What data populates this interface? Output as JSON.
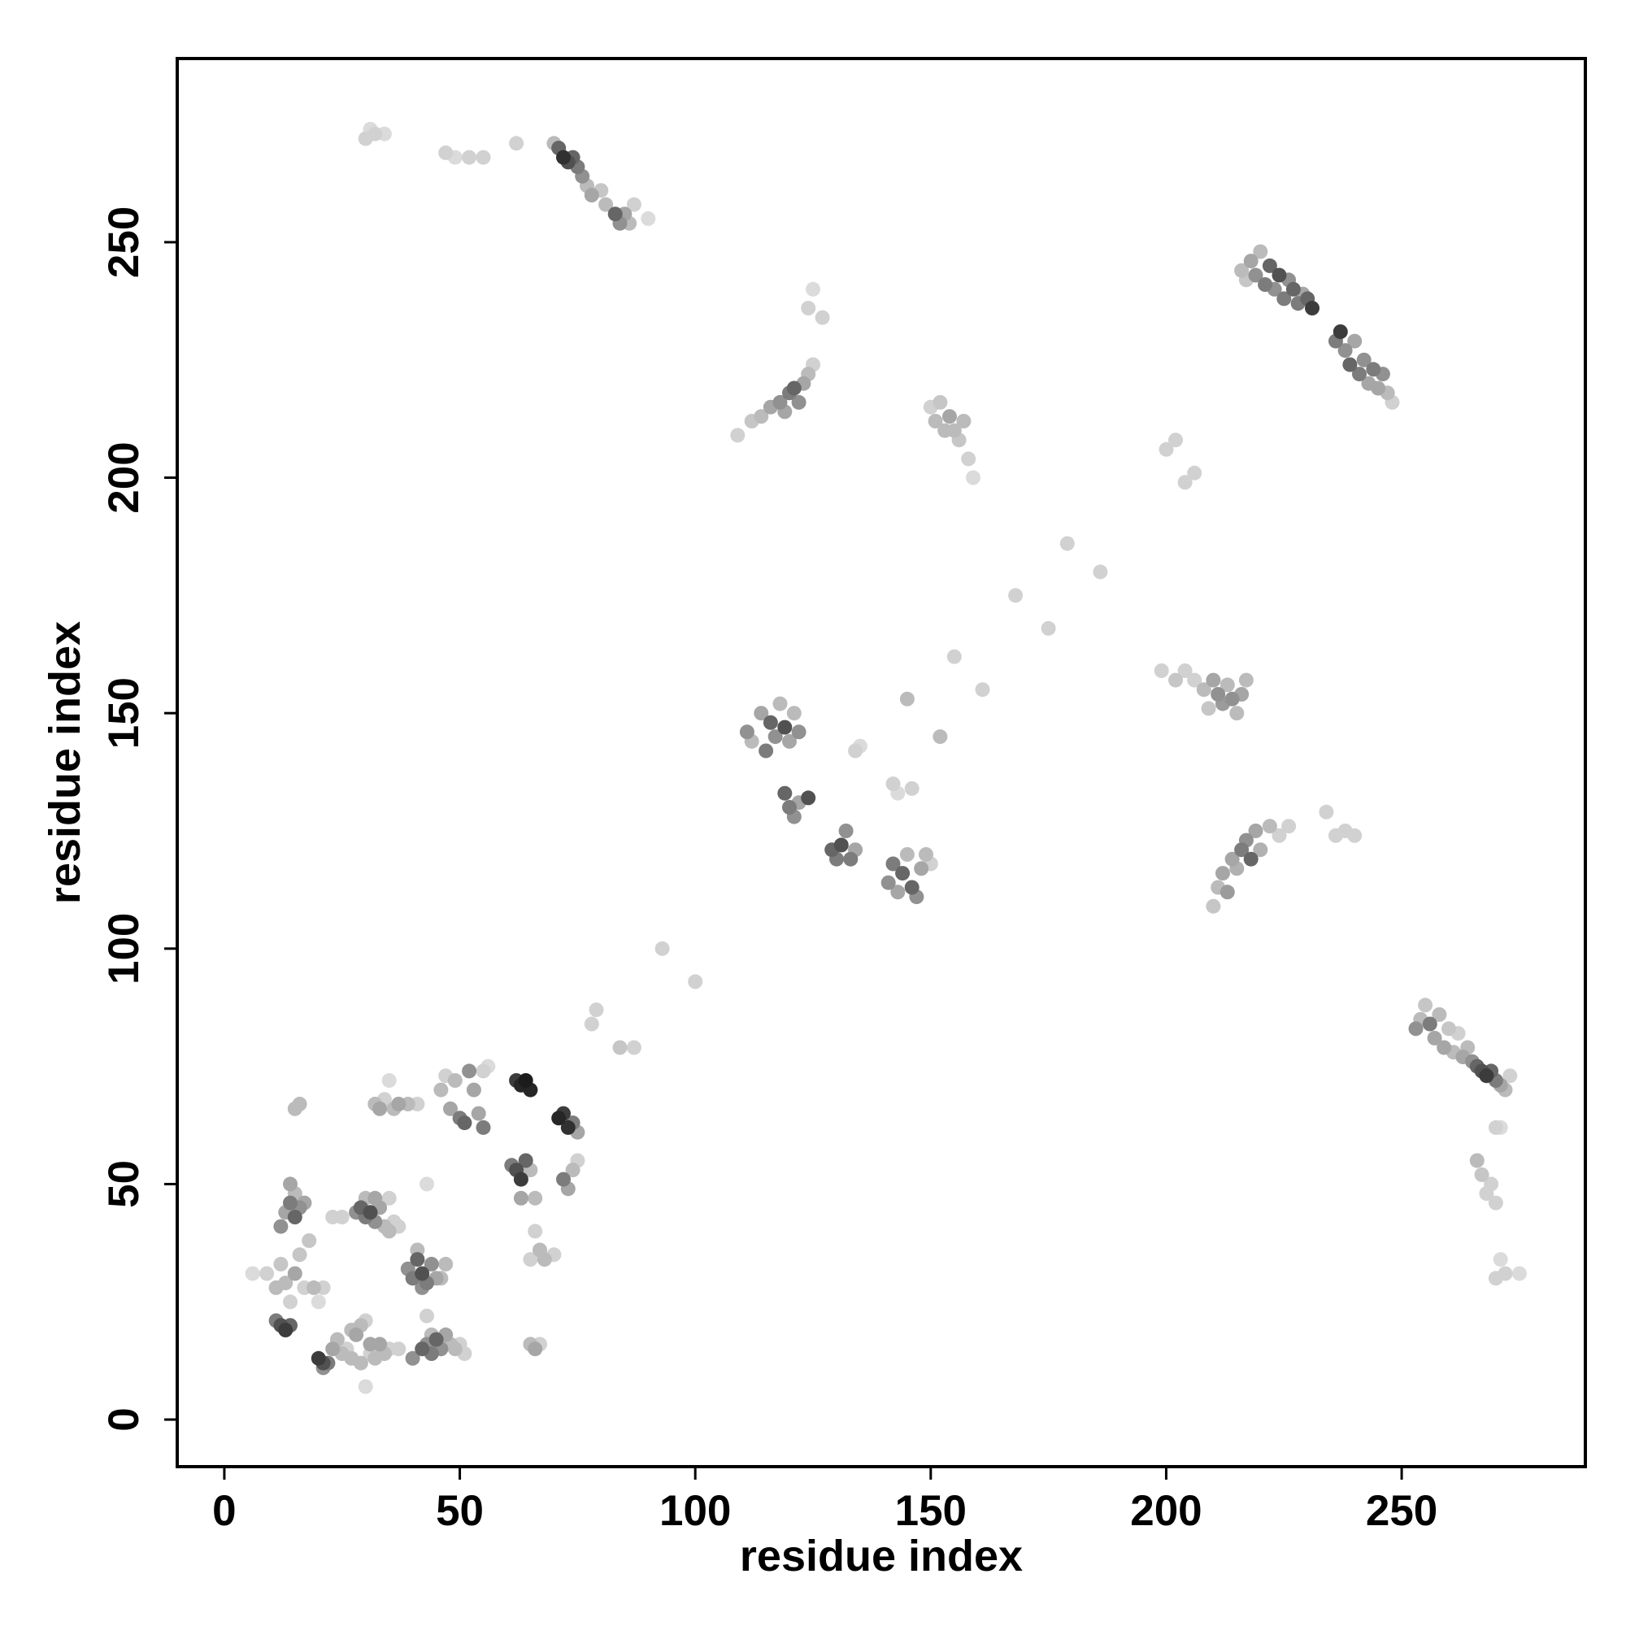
{
  "chart_data": {
    "type": "scatter",
    "title": "",
    "xlabel": "residue index",
    "ylabel": "residue index",
    "xlim": [
      -10,
      289
    ],
    "ylim": [
      -10,
      289
    ],
    "xticks": [
      0,
      50,
      100,
      150,
      200,
      250
    ],
    "yticks": [
      0,
      50,
      100,
      150,
      200,
      250
    ],
    "xtick_labels": [
      "0",
      "50",
      "100",
      "150",
      "200",
      "250"
    ],
    "ytick_labels": [
      "0",
      "50",
      "100",
      "150",
      "200",
      "250"
    ],
    "grid": false,
    "legend": "none",
    "marker_color_scale": "grayscale: 0 = #e6e6e6 (light), 1 = #111111 (dark)",
    "points_format": "[x, y, shade]",
    "points": [
      [
        6,
        31,
        0.05
      ],
      [
        9,
        31,
        0.1
      ],
      [
        11,
        28,
        0.2
      ],
      [
        12,
        33,
        0.15
      ],
      [
        12,
        41,
        0.4
      ],
      [
        13,
        44,
        0.3
      ],
      [
        14,
        46,
        0.5
      ],
      [
        14,
        50,
        0.3
      ],
      [
        15,
        43,
        0.6
      ],
      [
        16,
        45,
        0.4
      ],
      [
        15,
        48,
        0.2
      ],
      [
        17,
        46,
        0.3
      ],
      [
        13,
        29,
        0.2
      ],
      [
        14,
        25,
        0.1
      ],
      [
        15,
        31,
        0.3
      ],
      [
        16,
        35,
        0.15
      ],
      [
        17,
        28,
        0.1
      ],
      [
        19,
        28,
        0.2
      ],
      [
        20,
        25,
        0.05
      ],
      [
        21,
        28,
        0.1
      ],
      [
        18,
        38,
        0.15
      ],
      [
        15,
        66,
        0.2
      ],
      [
        16,
        67,
        0.2
      ],
      [
        11,
        21,
        0.5
      ],
      [
        12,
        20,
        0.7
      ],
      [
        13,
        19,
        0.8
      ],
      [
        14,
        20,
        0.6
      ],
      [
        20,
        13,
        0.8
      ],
      [
        21,
        12,
        0.7
      ],
      [
        22,
        12,
        0.5
      ],
      [
        21,
        11,
        0.4
      ],
      [
        23,
        15,
        0.3
      ],
      [
        24,
        17,
        0.2
      ],
      [
        25,
        14,
        0.2
      ],
      [
        26,
        15,
        0.1
      ],
      [
        27,
        19,
        0.2
      ],
      [
        28,
        18,
        0.3
      ],
      [
        29,
        20,
        0.2
      ],
      [
        30,
        21,
        0.1
      ],
      [
        27,
        13,
        0.2
      ],
      [
        29,
        12,
        0.2
      ],
      [
        31,
        14,
        0.1
      ],
      [
        32,
        13,
        0.2
      ],
      [
        31,
        16,
        0.3
      ],
      [
        30,
        7,
        0.05
      ],
      [
        33,
        16,
        0.3
      ],
      [
        34,
        14,
        0.2
      ],
      [
        35,
        15,
        0.1
      ],
      [
        37,
        15,
        0.1
      ],
      [
        28,
        44,
        0.4
      ],
      [
        29,
        45,
        0.6
      ],
      [
        30,
        43,
        0.5
      ],
      [
        31,
        44,
        0.7
      ],
      [
        32,
        42,
        0.4
      ],
      [
        33,
        45,
        0.3
      ],
      [
        34,
        41,
        0.2
      ],
      [
        35,
        40,
        0.2
      ],
      [
        36,
        42,
        0.1
      ],
      [
        37,
        41,
        0.1
      ],
      [
        30,
        47,
        0.2
      ],
      [
        32,
        47,
        0.3
      ],
      [
        35,
        47,
        0.1
      ],
      [
        25,
        43,
        0.1
      ],
      [
        23,
        43,
        0.1
      ],
      [
        32,
        67,
        0.2
      ],
      [
        33,
        66,
        0.3
      ],
      [
        34,
        68,
        0.1
      ],
      [
        35,
        72,
        0.05
      ],
      [
        36,
        66,
        0.2
      ],
      [
        37,
        67,
        0.3
      ],
      [
        39,
        67,
        0.2
      ],
      [
        41,
        67,
        0.1
      ],
      [
        39,
        32,
        0.4
      ],
      [
        40,
        30,
        0.5
      ],
      [
        41,
        34,
        0.6
      ],
      [
        42,
        31,
        0.7
      ],
      [
        43,
        29,
        0.5
      ],
      [
        44,
        33,
        0.4
      ],
      [
        45,
        30,
        0.3
      ],
      [
        41,
        36,
        0.2
      ],
      [
        42,
        28,
        0.4
      ],
      [
        43,
        22,
        0.1
      ],
      [
        47,
        33,
        0.2
      ],
      [
        46,
        30,
        0.2
      ],
      [
        44,
        18,
        0.2
      ],
      [
        42,
        15,
        0.6
      ],
      [
        43,
        16,
        0.4
      ],
      [
        44,
        14,
        0.5
      ],
      [
        45,
        17,
        0.6
      ],
      [
        46,
        15,
        0.4
      ],
      [
        47,
        18,
        0.3
      ],
      [
        48,
        16,
        0.2
      ],
      [
        49,
        15,
        0.2
      ],
      [
        50,
        16,
        0.1
      ],
      [
        51,
        14,
        0.1
      ],
      [
        40,
        13,
        0.4
      ],
      [
        43,
        50,
        0.05
      ],
      [
        46,
        70,
        0.2
      ],
      [
        47,
        73,
        0.1
      ],
      [
        48,
        66,
        0.3
      ],
      [
        49,
        72,
        0.2
      ],
      [
        50,
        64,
        0.5
      ],
      [
        51,
        63,
        0.6
      ],
      [
        52,
        74,
        0.4
      ],
      [
        53,
        70,
        0.3
      ],
      [
        54,
        65,
        0.3
      ],
      [
        55,
        62,
        0.5
      ],
      [
        55,
        74,
        0.1
      ],
      [
        56,
        75,
        0.05
      ],
      [
        61,
        54,
        0.5
      ],
      [
        62,
        53,
        0.7
      ],
      [
        63,
        51,
        0.8
      ],
      [
        64,
        55,
        0.6
      ],
      [
        63,
        47,
        0.3
      ],
      [
        65,
        53,
        0.2
      ],
      [
        62,
        72,
        0.8
      ],
      [
        63,
        71,
        0.9
      ],
      [
        64,
        72,
        0.95
      ],
      [
        65,
        70,
        0.9
      ],
      [
        66,
        47,
        0.2
      ],
      [
        66,
        40,
        0.1
      ],
      [
        67,
        36,
        0.2
      ],
      [
        68,
        34,
        0.2
      ],
      [
        65,
        34,
        0.1
      ],
      [
        70,
        35,
        0.1
      ],
      [
        65,
        16,
        0.2
      ],
      [
        66,
        15,
        0.3
      ],
      [
        67,
        16,
        0.1
      ],
      [
        71,
        64,
        0.9
      ],
      [
        72,
        65,
        0.8
      ],
      [
        73,
        62,
        0.85
      ],
      [
        74,
        63,
        0.5
      ],
      [
        75,
        61,
        0.3
      ],
      [
        72,
        51,
        0.5
      ],
      [
        73,
        49,
        0.3
      ],
      [
        74,
        53,
        0.2
      ],
      [
        75,
        55,
        0.1
      ],
      [
        78,
        84,
        0.1
      ],
      [
        79,
        87,
        0.1
      ],
      [
        84,
        79,
        0.15
      ],
      [
        87,
        79,
        0.1
      ],
      [
        93,
        100,
        0.1
      ],
      [
        100,
        93,
        0.1
      ],
      [
        30,
        272,
        0.1
      ],
      [
        31,
        274,
        0.05
      ],
      [
        32,
        273,
        0.1
      ],
      [
        34,
        273,
        0.05
      ],
      [
        47,
        269,
        0.1
      ],
      [
        49,
        268,
        0.05
      ],
      [
        52,
        268,
        0.1
      ],
      [
        55,
        268,
        0.1
      ],
      [
        62,
        271,
        0.1
      ],
      [
        70,
        271,
        0.2
      ],
      [
        71,
        270,
        0.6
      ],
      [
        72,
        268,
        0.85
      ],
      [
        73,
        267,
        0.7
      ],
      [
        74,
        268,
        0.6
      ],
      [
        75,
        266,
        0.5
      ],
      [
        76,
        264,
        0.4
      ],
      [
        77,
        262,
        0.2
      ],
      [
        78,
        260,
        0.3
      ],
      [
        80,
        261,
        0.15
      ],
      [
        81,
        258,
        0.2
      ],
      [
        83,
        256,
        0.6
      ],
      [
        84,
        254,
        0.4
      ],
      [
        85,
        256,
        0.3
      ],
      [
        86,
        254,
        0.2
      ],
      [
        87,
        258,
        0.1
      ],
      [
        90,
        255,
        0.05
      ],
      [
        109,
        209,
        0.1
      ],
      [
        112,
        212,
        0.15
      ],
      [
        114,
        213,
        0.2
      ],
      [
        116,
        215,
        0.3
      ],
      [
        118,
        216,
        0.4
      ],
      [
        119,
        214,
        0.3
      ],
      [
        120,
        218,
        0.5
      ],
      [
        121,
        219,
        0.6
      ],
      [
        122,
        216,
        0.4
      ],
      [
        123,
        220,
        0.3
      ],
      [
        124,
        222,
        0.2
      ],
      [
        125,
        224,
        0.1
      ],
      [
        124,
        236,
        0.1
      ],
      [
        125,
        240,
        0.05
      ],
      [
        127,
        234,
        0.1
      ],
      [
        111,
        146,
        0.4
      ],
      [
        112,
        144,
        0.2
      ],
      [
        114,
        150,
        0.3
      ],
      [
        115,
        142,
        0.5
      ],
      [
        116,
        148,
        0.6
      ],
      [
        117,
        145,
        0.4
      ],
      [
        118,
        152,
        0.2
      ],
      [
        119,
        147,
        0.7
      ],
      [
        120,
        144,
        0.3
      ],
      [
        121,
        150,
        0.2
      ],
      [
        122,
        146,
        0.4
      ],
      [
        119,
        133,
        0.6
      ],
      [
        120,
        130,
        0.5
      ],
      [
        121,
        128,
        0.4
      ],
      [
        122,
        131,
        0.3
      ],
      [
        124,
        132,
        0.7
      ],
      [
        129,
        121,
        0.6
      ],
      [
        130,
        119,
        0.5
      ],
      [
        131,
        122,
        0.7
      ],
      [
        132,
        125,
        0.4
      ],
      [
        133,
        119,
        0.5
      ],
      [
        134,
        121,
        0.3
      ],
      [
        134,
        142,
        0.1
      ],
      [
        135,
        143,
        0.05
      ],
      [
        142,
        135,
        0.1
      ],
      [
        143,
        133,
        0.05
      ],
      [
        141,
        114,
        0.4
      ],
      [
        142,
        118,
        0.5
      ],
      [
        143,
        112,
        0.3
      ],
      [
        144,
        116,
        0.6
      ],
      [
        145,
        120,
        0.2
      ],
      [
        146,
        113,
        0.6
      ],
      [
        147,
        111,
        0.4
      ],
      [
        148,
        117,
        0.3
      ],
      [
        149,
        120,
        0.2
      ],
      [
        150,
        118,
        0.1
      ],
      [
        145,
        153,
        0.2
      ],
      [
        146,
        134,
        0.1
      ],
      [
        152,
        145,
        0.2
      ],
      [
        150,
        215,
        0.1
      ],
      [
        151,
        212,
        0.2
      ],
      [
        152,
        216,
        0.15
      ],
      [
        153,
        210,
        0.2
      ],
      [
        154,
        213,
        0.3
      ],
      [
        155,
        210,
        0.2
      ],
      [
        156,
        208,
        0.15
      ],
      [
        157,
        212,
        0.2
      ],
      [
        158,
        204,
        0.1
      ],
      [
        159,
        200,
        0.05
      ],
      [
        155,
        162,
        0.1
      ],
      [
        161,
        155,
        0.1
      ],
      [
        168,
        175,
        0.1
      ],
      [
        175,
        168,
        0.1
      ],
      [
        179,
        186,
        0.1
      ],
      [
        186,
        180,
        0.1
      ],
      [
        199,
        159,
        0.1
      ],
      [
        200,
        206,
        0.1
      ],
      [
        202,
        208,
        0.1
      ],
      [
        204,
        199,
        0.1
      ],
      [
        206,
        201,
        0.1
      ],
      [
        202,
        157,
        0.15
      ],
      [
        204,
        159,
        0.1
      ],
      [
        206,
        157,
        0.1
      ],
      [
        208,
        155,
        0.2
      ],
      [
        209,
        151,
        0.15
      ],
      [
        210,
        157,
        0.3
      ],
      [
        211,
        154,
        0.4
      ],
      [
        212,
        152,
        0.35
      ],
      [
        213,
        156,
        0.2
      ],
      [
        214,
        153,
        0.4
      ],
      [
        215,
        150,
        0.2
      ],
      [
        216,
        154,
        0.3
      ],
      [
        217,
        157,
        0.2
      ],
      [
        210,
        109,
        0.15
      ],
      [
        211,
        113,
        0.2
      ],
      [
        212,
        116,
        0.3
      ],
      [
        213,
        112,
        0.35
      ],
      [
        214,
        119,
        0.3
      ],
      [
        215,
        117,
        0.25
      ],
      [
        216,
        121,
        0.5
      ],
      [
        217,
        123,
        0.4
      ],
      [
        218,
        119,
        0.6
      ],
      [
        219,
        125,
        0.3
      ],
      [
        220,
        121,
        0.25
      ],
      [
        222,
        126,
        0.2
      ],
      [
        224,
        124,
        0.1
      ],
      [
        226,
        126,
        0.1
      ],
      [
        234,
        129,
        0.1
      ],
      [
        236,
        124,
        0.1
      ],
      [
        238,
        125,
        0.1
      ],
      [
        240,
        124,
        0.1
      ],
      [
        216,
        244,
        0.2
      ],
      [
        217,
        242,
        0.15
      ],
      [
        218,
        246,
        0.3
      ],
      [
        219,
        243,
        0.4
      ],
      [
        220,
        248,
        0.2
      ],
      [
        221,
        241,
        0.5
      ],
      [
        222,
        245,
        0.6
      ],
      [
        223,
        240,
        0.4
      ],
      [
        224,
        243,
        0.7
      ],
      [
        225,
        238,
        0.5
      ],
      [
        226,
        242,
        0.4
      ],
      [
        227,
        240,
        0.6
      ],
      [
        228,
        237,
        0.5
      ],
      [
        229,
        239,
        0.3
      ],
      [
        230,
        238,
        0.6
      ],
      [
        231,
        236,
        0.8
      ],
      [
        236,
        229,
        0.5
      ],
      [
        237,
        231,
        0.8
      ],
      [
        238,
        227,
        0.4
      ],
      [
        239,
        224,
        0.6
      ],
      [
        240,
        229,
        0.3
      ],
      [
        241,
        222,
        0.5
      ],
      [
        242,
        225,
        0.4
      ],
      [
        243,
        220,
        0.3
      ],
      [
        244,
        223,
        0.5
      ],
      [
        245,
        219,
        0.3
      ],
      [
        246,
        222,
        0.4
      ],
      [
        247,
        218,
        0.2
      ],
      [
        248,
        216,
        0.1
      ],
      [
        253,
        83,
        0.4
      ],
      [
        254,
        85,
        0.2
      ],
      [
        255,
        88,
        0.15
      ],
      [
        256,
        84,
        0.5
      ],
      [
        257,
        81,
        0.3
      ],
      [
        258,
        86,
        0.2
      ],
      [
        259,
        79,
        0.3
      ],
      [
        260,
        83,
        0.15
      ],
      [
        261,
        78,
        0.2
      ],
      [
        262,
        82,
        0.1
      ],
      [
        263,
        77,
        0.3
      ],
      [
        264,
        79,
        0.2
      ],
      [
        265,
        76,
        0.4
      ],
      [
        266,
        75,
        0.6
      ],
      [
        267,
        74,
        0.7
      ],
      [
        268,
        73,
        0.8
      ],
      [
        269,
        74,
        0.6
      ],
      [
        270,
        72,
        0.5
      ],
      [
        271,
        71,
        0.3
      ],
      [
        272,
        70,
        0.2
      ],
      [
        273,
        73,
        0.1
      ],
      [
        266,
        55,
        0.2
      ],
      [
        267,
        52,
        0.15
      ],
      [
        268,
        48,
        0.1
      ],
      [
        269,
        50,
        0.1
      ],
      [
        270,
        46,
        0.1
      ],
      [
        270,
        62,
        0.1
      ],
      [
        271,
        62,
        0.05
      ],
      [
        270,
        30,
        0.1
      ],
      [
        271,
        34,
        0.05
      ],
      [
        272,
        31,
        0.1
      ],
      [
        275,
        31,
        0.05
      ]
    ]
  }
}
